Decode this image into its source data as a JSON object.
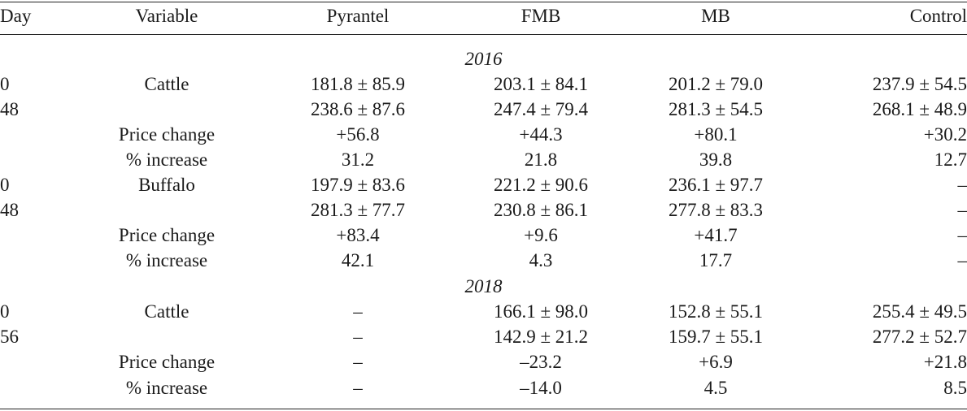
{
  "header": [
    "Day",
    "Variable",
    "Pyrantel",
    "FMB",
    "MB",
    "Control"
  ],
  "sections": [
    {
      "year": "2016",
      "rows": [
        [
          "0",
          "Cattle",
          "181.8 ± 85.9",
          "203.1 ± 84.1",
          "201.2 ± 79.0",
          "237.9 ± 54.5"
        ],
        [
          "48",
          "",
          "238.6 ± 87.6",
          "247.4 ± 79.4",
          "281.3 ± 54.5",
          "268.1 ± 48.9"
        ],
        [
          "",
          "Price change",
          "+56.8",
          "+44.3",
          "+80.1",
          "+30.2"
        ],
        [
          "",
          "% increase",
          "31.2",
          "21.8",
          "39.8",
          "12.7"
        ],
        [
          "0",
          "Buffalo",
          "197.9 ± 83.6",
          "221.2 ± 90.6",
          "236.1 ± 97.7",
          "–"
        ],
        [
          "48",
          "",
          "281.3 ± 77.7",
          "230.8 ± 86.1",
          "277.8 ± 83.3",
          "–"
        ],
        [
          "",
          "Price change",
          "+83.4",
          "+9.6",
          "+41.7",
          "–"
        ],
        [
          "",
          "% increase",
          "42.1",
          "4.3",
          "17.7",
          "–"
        ]
      ]
    },
    {
      "year": "2018",
      "rows": [
        [
          "0",
          "Cattle",
          "–",
          "166.1 ± 98.0",
          "152.8 ± 55.1",
          "255.4 ± 49.5"
        ],
        [
          "56",
          "",
          "–",
          "142.9 ± 21.2",
          "159.7 ± 55.1",
          "277.2 ± 52.7"
        ],
        [
          "",
          "Price change",
          "–",
          "–23.2",
          "+6.9",
          "+21.8"
        ],
        [
          "",
          "% increase",
          "–",
          "–14.0",
          "4.5",
          "8.5"
        ]
      ]
    }
  ]
}
